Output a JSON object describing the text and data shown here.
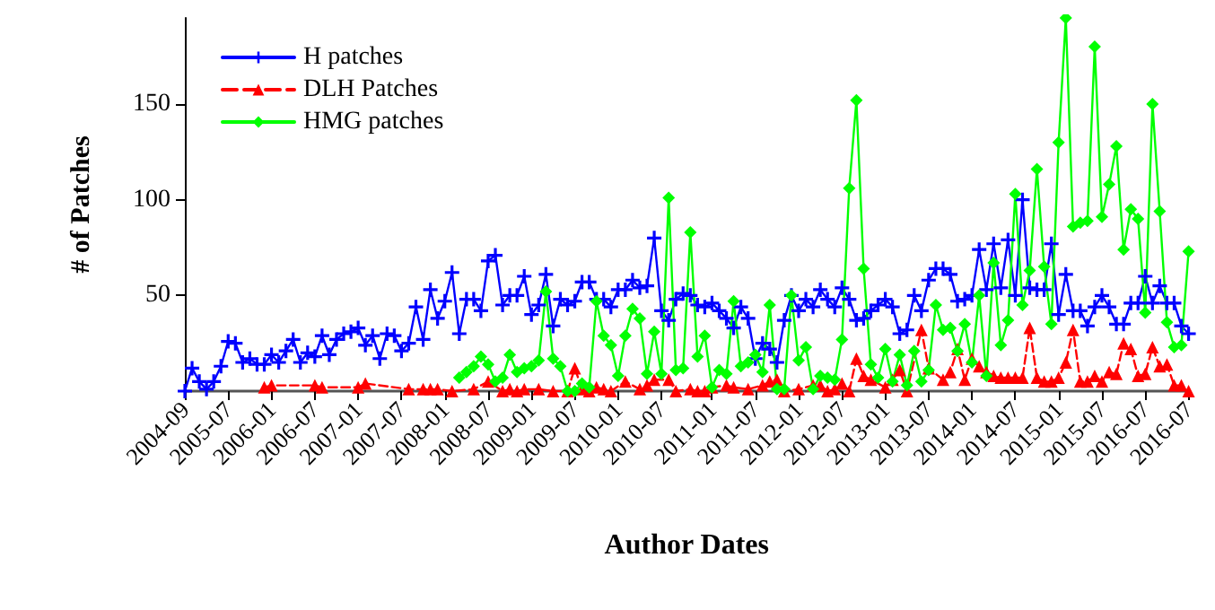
{
  "chart_data": {
    "type": "line",
    "xlabel": "Author Dates",
    "ylabel": "# of Patches",
    "categories": [
      "2004-09",
      null,
      null,
      null,
      null,
      null,
      "2005-07",
      null,
      null,
      null,
      null,
      null,
      "2006-01",
      null,
      null,
      null,
      null,
      null,
      "2006-07",
      null,
      null,
      null,
      null,
      null,
      "2007-01",
      null,
      null,
      null,
      null,
      null,
      "2007-07",
      null,
      null,
      null,
      null,
      null,
      "2008-01",
      null,
      null,
      null,
      null,
      null,
      "2008-07",
      null,
      null,
      null,
      null,
      null,
      "2009-01",
      null,
      null,
      null,
      null,
      null,
      "2009-07",
      null,
      null,
      null,
      null,
      null,
      "2010-01",
      null,
      null,
      null,
      null,
      null,
      "2010-07",
      null,
      null,
      null,
      null,
      null,
      null,
      "2011-01",
      null,
      null,
      null,
      null,
      null,
      "2011-07",
      null,
      null,
      null,
      null,
      null,
      "2012-01",
      null,
      null,
      null,
      null,
      null,
      "2012-07",
      null,
      null,
      null,
      null,
      null,
      "2013-01",
      null,
      null,
      null,
      null,
      null,
      "2013-07",
      null,
      null,
      null,
      null,
      null,
      "2014-01",
      null,
      null,
      null,
      null,
      null,
      "2014-07",
      null,
      null,
      null,
      null,
      null,
      "2015-01",
      null,
      null,
      null,
      null,
      null,
      "2015-07",
      null,
      null,
      null,
      null,
      null,
      "2016-07",
      null,
      null,
      null,
      null,
      null,
      "2016-07"
    ],
    "series": [
      {
        "name": "H patches",
        "color": "#0000ff",
        "marker": "cross",
        "line_style": "solid",
        "values": [
          0,
          12,
          5,
          1,
          5,
          13,
          26,
          25,
          15,
          17,
          14,
          14,
          19,
          15,
          21,
          27,
          15,
          20,
          18,
          29,
          19,
          27,
          30,
          31,
          33,
          24,
          29,
          17,
          30,
          29,
          21,
          25,
          44,
          27,
          53,
          38,
          47,
          62,
          30,
          48,
          48,
          42,
          68,
          71,
          45,
          50,
          50,
          60,
          40,
          45,
          61,
          34,
          48,
          45,
          47,
          57,
          57,
          48,
          48,
          44,
          53,
          53,
          58,
          54,
          55,
          80,
          42,
          37,
          48,
          51,
          50,
          45,
          44,
          46,
          42,
          38,
          33,
          44,
          38,
          17,
          25,
          22,
          15,
          37,
          50,
          42,
          48,
          44,
          53,
          48,
          44,
          54,
          48,
          37,
          38,
          42,
          45,
          48,
          44,
          30,
          32,
          50,
          42,
          58,
          64,
          64,
          61,
          47,
          48,
          50,
          74,
          53,
          77,
          54,
          79,
          50,
          100,
          54,
          53,
          53,
          77,
          40,
          61,
          42,
          42,
          34,
          44,
          50,
          44,
          35,
          35,
          46,
          46,
          60,
          46,
          55,
          46,
          46,
          34,
          30
        ]
      },
      {
        "name": "DLH Patches",
        "color": "#ff0000",
        "marker": "triangle",
        "line_style": "dashed",
        "values": [
          null,
          null,
          null,
          null,
          null,
          null,
          null,
          null,
          null,
          null,
          null,
          2,
          3,
          null,
          null,
          null,
          null,
          null,
          3,
          2,
          null,
          null,
          null,
          null,
          2,
          4,
          null,
          null,
          null,
          null,
          null,
          1,
          null,
          1,
          1,
          1,
          null,
          0,
          null,
          null,
          1,
          null,
          5,
          null,
          0,
          1,
          0,
          1,
          null,
          1,
          null,
          0,
          null,
          0,
          12,
          1,
          0,
          2,
          1,
          0,
          null,
          5,
          null,
          1,
          3,
          6,
          null,
          6,
          0,
          null,
          1,
          0,
          0,
          2,
          null,
          3,
          2,
          null,
          1,
          null,
          3,
          5,
          6,
          0,
          null,
          1,
          null,
          3,
          3,
          0,
          1,
          4,
          0,
          17,
          8,
          6,
          null,
          2,
          6,
          11,
          0,
          null,
          32,
          12,
          null,
          6,
          10,
          22,
          6,
          17,
          13,
          10,
          8,
          7,
          7,
          7,
          7,
          33,
          7,
          5,
          5,
          7,
          15,
          32,
          5,
          5,
          8,
          5,
          10,
          9,
          25,
          22,
          8,
          9,
          23,
          13,
          14,
          3,
          3,
          0
        ]
      },
      {
        "name": "HMG patches",
        "color": "#00ff00",
        "marker": "diamond",
        "line_style": "solid",
        "values": [
          null,
          null,
          null,
          null,
          null,
          null,
          null,
          null,
          null,
          null,
          null,
          null,
          null,
          null,
          null,
          null,
          null,
          null,
          null,
          null,
          null,
          null,
          null,
          null,
          null,
          null,
          null,
          null,
          null,
          null,
          null,
          null,
          null,
          null,
          null,
          null,
          null,
          null,
          7,
          10,
          13,
          18,
          14,
          5,
          7,
          19,
          10,
          12,
          13,
          16,
          52,
          17,
          13,
          0,
          0,
          4,
          2,
          47,
          29,
          24,
          8,
          29,
          43,
          38,
          9,
          31,
          9,
          101,
          11,
          12,
          83,
          18,
          29,
          2,
          11,
          9,
          47,
          13,
          15,
          19,
          10,
          45,
          1,
          1,
          50,
          16,
          23,
          1,
          8,
          7,
          6,
          27,
          106,
          152,
          64,
          14,
          7,
          22,
          5,
          19,
          3,
          21,
          5,
          11,
          45,
          32,
          33,
          21,
          35,
          15,
          50,
          8,
          67,
          24,
          37,
          103,
          45,
          63,
          116,
          65,
          35,
          130,
          195,
          86,
          88,
          89,
          180,
          91,
          108,
          128,
          74,
          95,
          90,
          41,
          150,
          94,
          36,
          23,
          24,
          73
        ]
      }
    ],
    "ylim": [
      0,
      195
    ],
    "yticks": [
      50,
      100,
      150
    ],
    "grid": false,
    "legend": "top left"
  }
}
